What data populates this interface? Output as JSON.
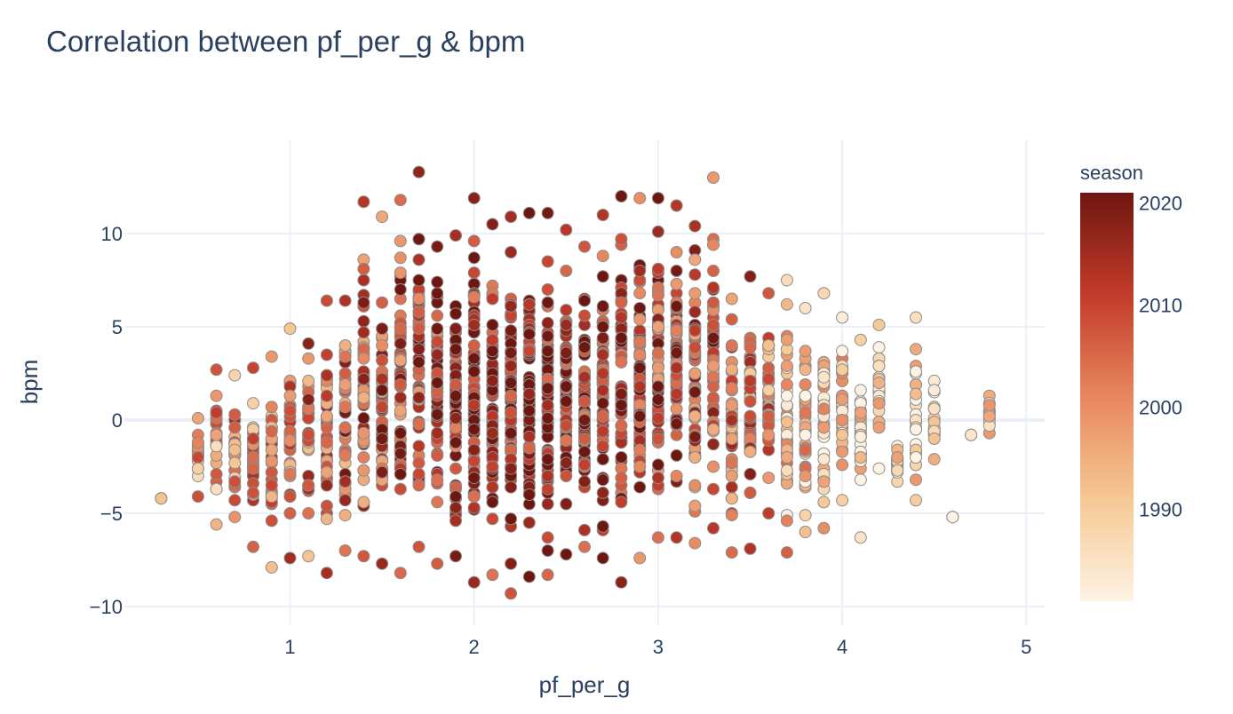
{
  "chart_data": {
    "type": "scatter",
    "title": "Correlation between pf_per_g & bpm",
    "xlabel": "pf_per_g",
    "ylabel": "bpm",
    "xlim": [
      0.1,
      5.1
    ],
    "ylim": [
      -11,
      15
    ],
    "x_ticks": [
      {
        "value": 1,
        "label": "1"
      },
      {
        "value": 2,
        "label": "2"
      },
      {
        "value": 3,
        "label": "3"
      },
      {
        "value": 4,
        "label": "4"
      },
      {
        "value": 5,
        "label": "5"
      }
    ],
    "y_ticks": [
      {
        "value": -10,
        "label": "−10"
      },
      {
        "value": -5,
        "label": "−5"
      },
      {
        "value": 0,
        "label": "0"
      },
      {
        "value": 5,
        "label": "5"
      },
      {
        "value": 10,
        "label": "10"
      }
    ],
    "grid": true,
    "colorbar": {
      "title": "season",
      "range": [
        1981,
        2021
      ],
      "ticks": [
        {
          "value": 1990,
          "label": "1990"
        },
        {
          "value": 2000,
          "label": "2000"
        },
        {
          "value": 2010,
          "label": "2010"
        },
        {
          "value": 2020,
          "label": "2020"
        }
      ],
      "colorscale": [
        "#fdf3e4",
        "#f6c894",
        "#e8875f",
        "#c23b2a",
        "#6e1610"
      ]
    },
    "column_ranges": [
      [
        0.3,
        -4.2,
        -4.2
      ],
      [
        0.5,
        -4.1,
        0.1
      ],
      [
        0.6,
        -5.6,
        2.7
      ],
      [
        0.7,
        -5.2,
        2.4
      ],
      [
        0.8,
        -6.8,
        2.8
      ],
      [
        0.9,
        -7.9,
        3.4
      ],
      [
        1.0,
        -7.4,
        4.9
      ],
      [
        1.1,
        -7.3,
        4.1
      ],
      [
        1.2,
        -8.2,
        6.4
      ],
      [
        1.3,
        -7.0,
        6.4
      ],
      [
        1.4,
        -7.3,
        11.7
      ],
      [
        1.5,
        -7.7,
        10.9
      ],
      [
        1.6,
        -8.2,
        11.8
      ],
      [
        1.7,
        -6.8,
        13.3
      ],
      [
        1.8,
        -7.7,
        9.3
      ],
      [
        1.9,
        -7.3,
        9.9
      ],
      [
        2.0,
        -8.7,
        11.9
      ],
      [
        2.1,
        -8.3,
        10.5
      ],
      [
        2.2,
        -9.3,
        10.9
      ],
      [
        2.3,
        -8.4,
        11.1
      ],
      [
        2.4,
        -8.3,
        11.1
      ],
      [
        2.5,
        -7.2,
        10.2
      ],
      [
        2.6,
        -6.8,
        9.3
      ],
      [
        2.7,
        -7.4,
        11.0
      ],
      [
        2.8,
        -8.7,
        12.0
      ],
      [
        2.9,
        -7.4,
        11.9
      ],
      [
        3.0,
        -6.3,
        11.9
      ],
      [
        3.1,
        -6.3,
        11.5
      ],
      [
        3.2,
        -6.6,
        10.4
      ],
      [
        3.3,
        -5.8,
        13.0
      ],
      [
        3.4,
        -7.1,
        6.5
      ],
      [
        3.5,
        -6.9,
        7.7
      ],
      [
        3.6,
        -5.0,
        6.8
      ],
      [
        3.7,
        -7.1,
        7.5
      ],
      [
        3.8,
        -6.0,
        6.0
      ],
      [
        3.9,
        -5.8,
        6.8
      ],
      [
        4.0,
        -4.3,
        5.5
      ],
      [
        4.1,
        -6.3,
        4.3
      ],
      [
        4.2,
        -2.6,
        5.1
      ],
      [
        4.3,
        -3.3,
        -1.4
      ],
      [
        4.4,
        -4.3,
        5.5
      ],
      [
        4.5,
        -2.1,
        2.1
      ],
      [
        4.6,
        -5.2,
        -5.2
      ],
      [
        4.7,
        -0.8,
        -0.8
      ],
      [
        4.8,
        -0.7,
        1.3
      ]
    ],
    "color_note": "Points span x 0.3–4.8 at 0.1 steps and bpm roughly −9.3 to 13.3; colored by season 1981–2021 (dark red = recent)"
  }
}
